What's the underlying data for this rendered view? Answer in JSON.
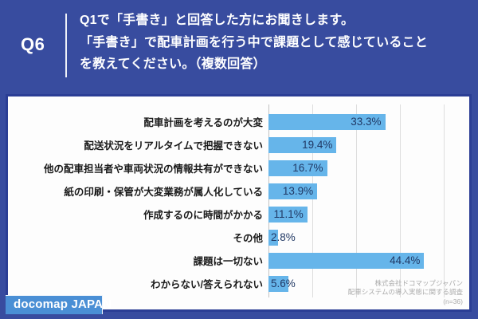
{
  "header": {
    "q_label": "Q6",
    "lines": [
      "Q1で「手書き」と回答した方にお聞きします。",
      "「手書き」で配車計画を行う中で課題として感じていること",
      "を教えてください。（複数回答）"
    ]
  },
  "chart_data": {
    "type": "bar",
    "orientation": "horizontal",
    "title": "「手書き」で配車計画を行う中で課題として感じていること（複数回答）",
    "categories": [
      "配車計画を考えるのが大変",
      "配送状況をリアルタイムで把握できない",
      "他の配車担当者や車両状況の情報共有ができない",
      "紙の印刷・保管が大変業務が属人化している",
      "作成するのに時間がかかる",
      "その他",
      "課題は一切ない",
      "わからない/答えられない"
    ],
    "values": [
      33.3,
      19.4,
      16.7,
      13.9,
      11.1,
      2.8,
      44.4,
      5.6
    ],
    "value_labels": [
      "33.3%",
      "19.4%",
      "16.7%",
      "13.9%",
      "11.1%",
      "2.8%",
      "44.4%",
      "5.6%"
    ],
    "xlim": [
      0,
      56.8
    ],
    "gridline_percents": [
      12.5,
      25,
      37.5,
      50
    ],
    "grid": true,
    "legend": false,
    "colors": {
      "bar": "#66B5EA",
      "value_text": "#203864",
      "category_text": "#1A1A1A",
      "gridline": "#DEDEDE",
      "axis_line": "#C2C2C2",
      "panel_border": "#2B3E95",
      "page_background": "#384C9F"
    }
  },
  "source": {
    "lines": [
      "株式会社ドコマップジャパン",
      "配車システムの導入実態に関する調査",
      "(n=36)"
    ]
  },
  "footer": {
    "logo_text": "docomap JAPAN",
    "logo_background": "#4A8FD5"
  }
}
